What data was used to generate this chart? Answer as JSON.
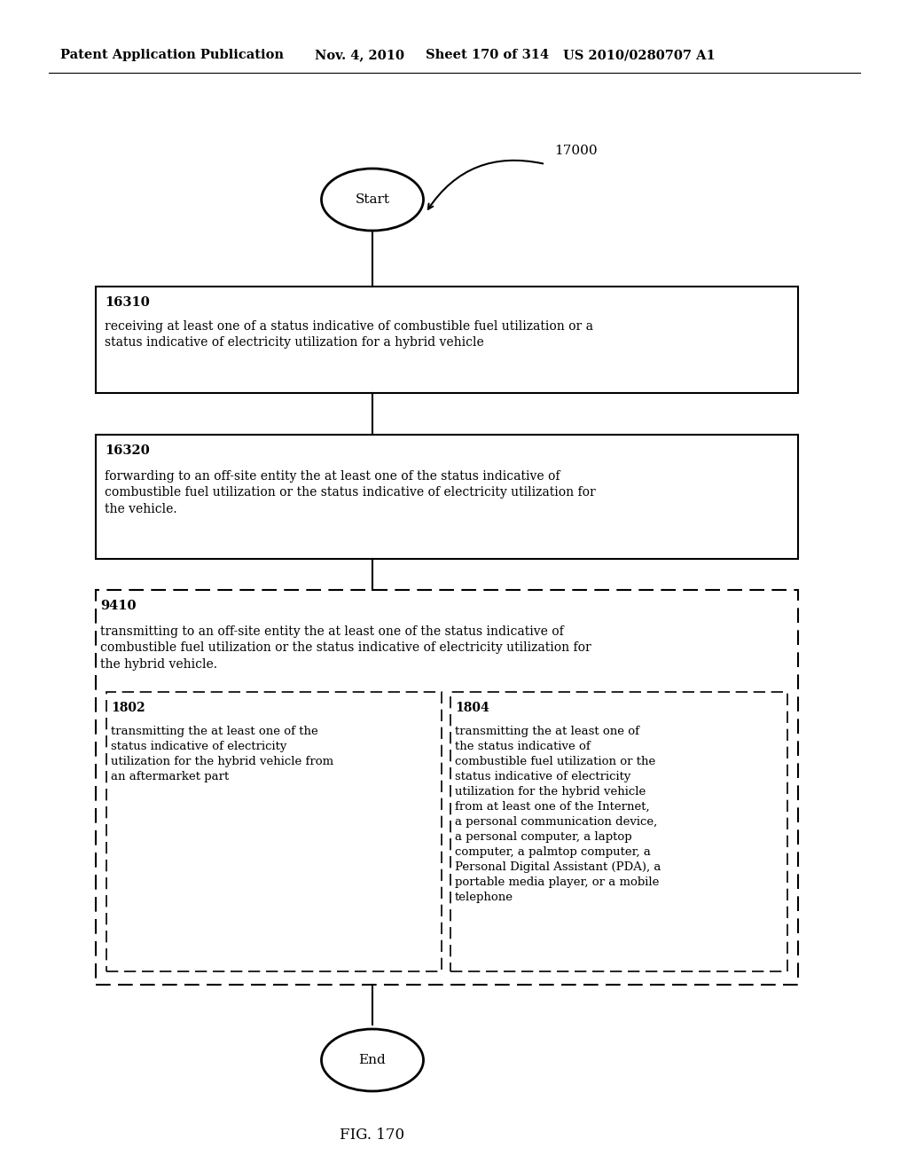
{
  "bg_color": "#ffffff",
  "header_text": "Patent Application Publication",
  "header_date": "Nov. 4, 2010",
  "header_sheet": "Sheet 170 of 314",
  "header_patent": "US 2010/0280707 A1",
  "fig_label": "FIG. 170",
  "diagram_label": "17000",
  "start_label": "Start",
  "end_label": "End",
  "box1_id": "16310",
  "box1_text": "receiving at least one of a status indicative of combustible fuel utilization or a\nstatus indicative of electricity utilization for a hybrid vehicle",
  "box2_id": "16320",
  "box2_text": "forwarding to an off-site entity the at least one of the status indicative of\ncombustible fuel utilization or the status indicative of electricity utilization for\nthe vehicle.",
  "outer_dashed_id": "9410",
  "outer_dashed_text": "transmitting to an off-site entity the at least one of the status indicative of\ncombustible fuel utilization or the status indicative of electricity utilization for\nthe hybrid vehicle.",
  "inner_left_id": "1802",
  "inner_left_text": "transmitting the at least one of the\nstatus indicative of electricity\nutilization for the hybrid vehicle from\nan aftermarket part",
  "inner_right_id": "1804",
  "inner_right_text": "transmitting the at least one of\nthe status indicative of\ncombustible fuel utilization or the\nstatus indicative of electricity\nutilization for the hybrid vehicle\nfrom at least one of the Internet,\na personal communication device,\na personal computer, a laptop\ncomputer, a palmtop computer, a\nPersonal Digital Assistant (PDA), a\nportable media player, or a mobile\ntelephone"
}
